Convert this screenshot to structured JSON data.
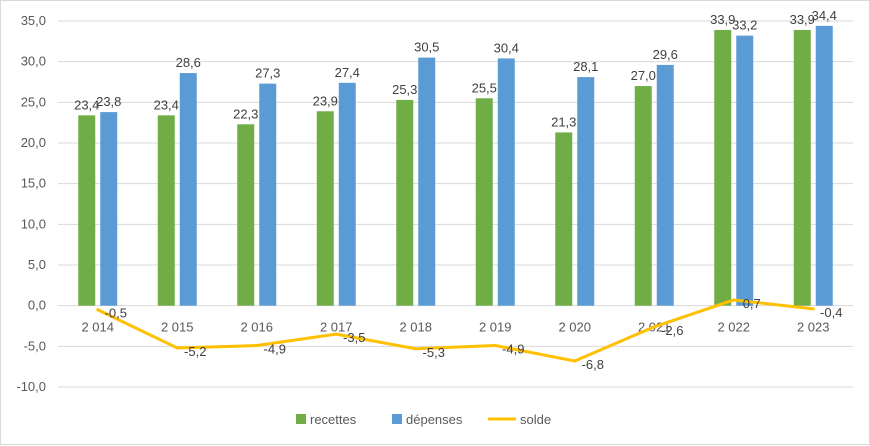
{
  "chart_data": {
    "type": "bar",
    "categories": [
      "2 014",
      "2 015",
      "2 016",
      "2 017",
      "2 018",
      "2 019",
      "2 020",
      "2 021",
      "2 022",
      "2 023"
    ],
    "series": [
      {
        "name": "recettes",
        "type": "bar",
        "color": "#70AD47",
        "values": [
          23.4,
          23.4,
          22.3,
          23.9,
          25.3,
          25.5,
          21.3,
          27.0,
          33.9,
          33.9
        ],
        "labels": [
          "23,4",
          "23,4",
          "22,3",
          "23,9",
          "25,3",
          "25,5",
          "21,3",
          "27,0",
          "33,9",
          "33,9"
        ]
      },
      {
        "name": "dépenses",
        "type": "bar",
        "color": "#5B9BD5",
        "values": [
          23.8,
          28.6,
          27.3,
          27.4,
          30.5,
          30.4,
          28.1,
          29.6,
          33.2,
          34.4
        ],
        "labels": [
          "23,8",
          "28,6",
          "27,3",
          "27,4",
          "30,5",
          "30,4",
          "28,1",
          "29,6",
          "33,2",
          "34,4"
        ]
      },
      {
        "name": "solde",
        "type": "line",
        "color": "#FFC000",
        "values": [
          -0.5,
          -5.2,
          -4.9,
          -3.5,
          -5.3,
          -4.9,
          -6.8,
          -2.6,
          0.7,
          -0.4
        ],
        "labels": [
          "-0,5",
          "-5,2",
          "-4,9",
          "-3,5",
          "-5,3",
          "-4,9",
          "-6,8",
          "-2,6",
          "0,7",
          "-0,4"
        ]
      }
    ],
    "yticks": [
      "-10,0",
      "-5,0",
      "0,0",
      "5,0",
      "10,0",
      "15,0",
      "20,0",
      "25,0",
      "30,0",
      "35,0"
    ],
    "ylim": [
      -10,
      35
    ],
    "grid": true,
    "legend": "bottom",
    "title": "",
    "xlabel": "",
    "ylabel": ""
  }
}
